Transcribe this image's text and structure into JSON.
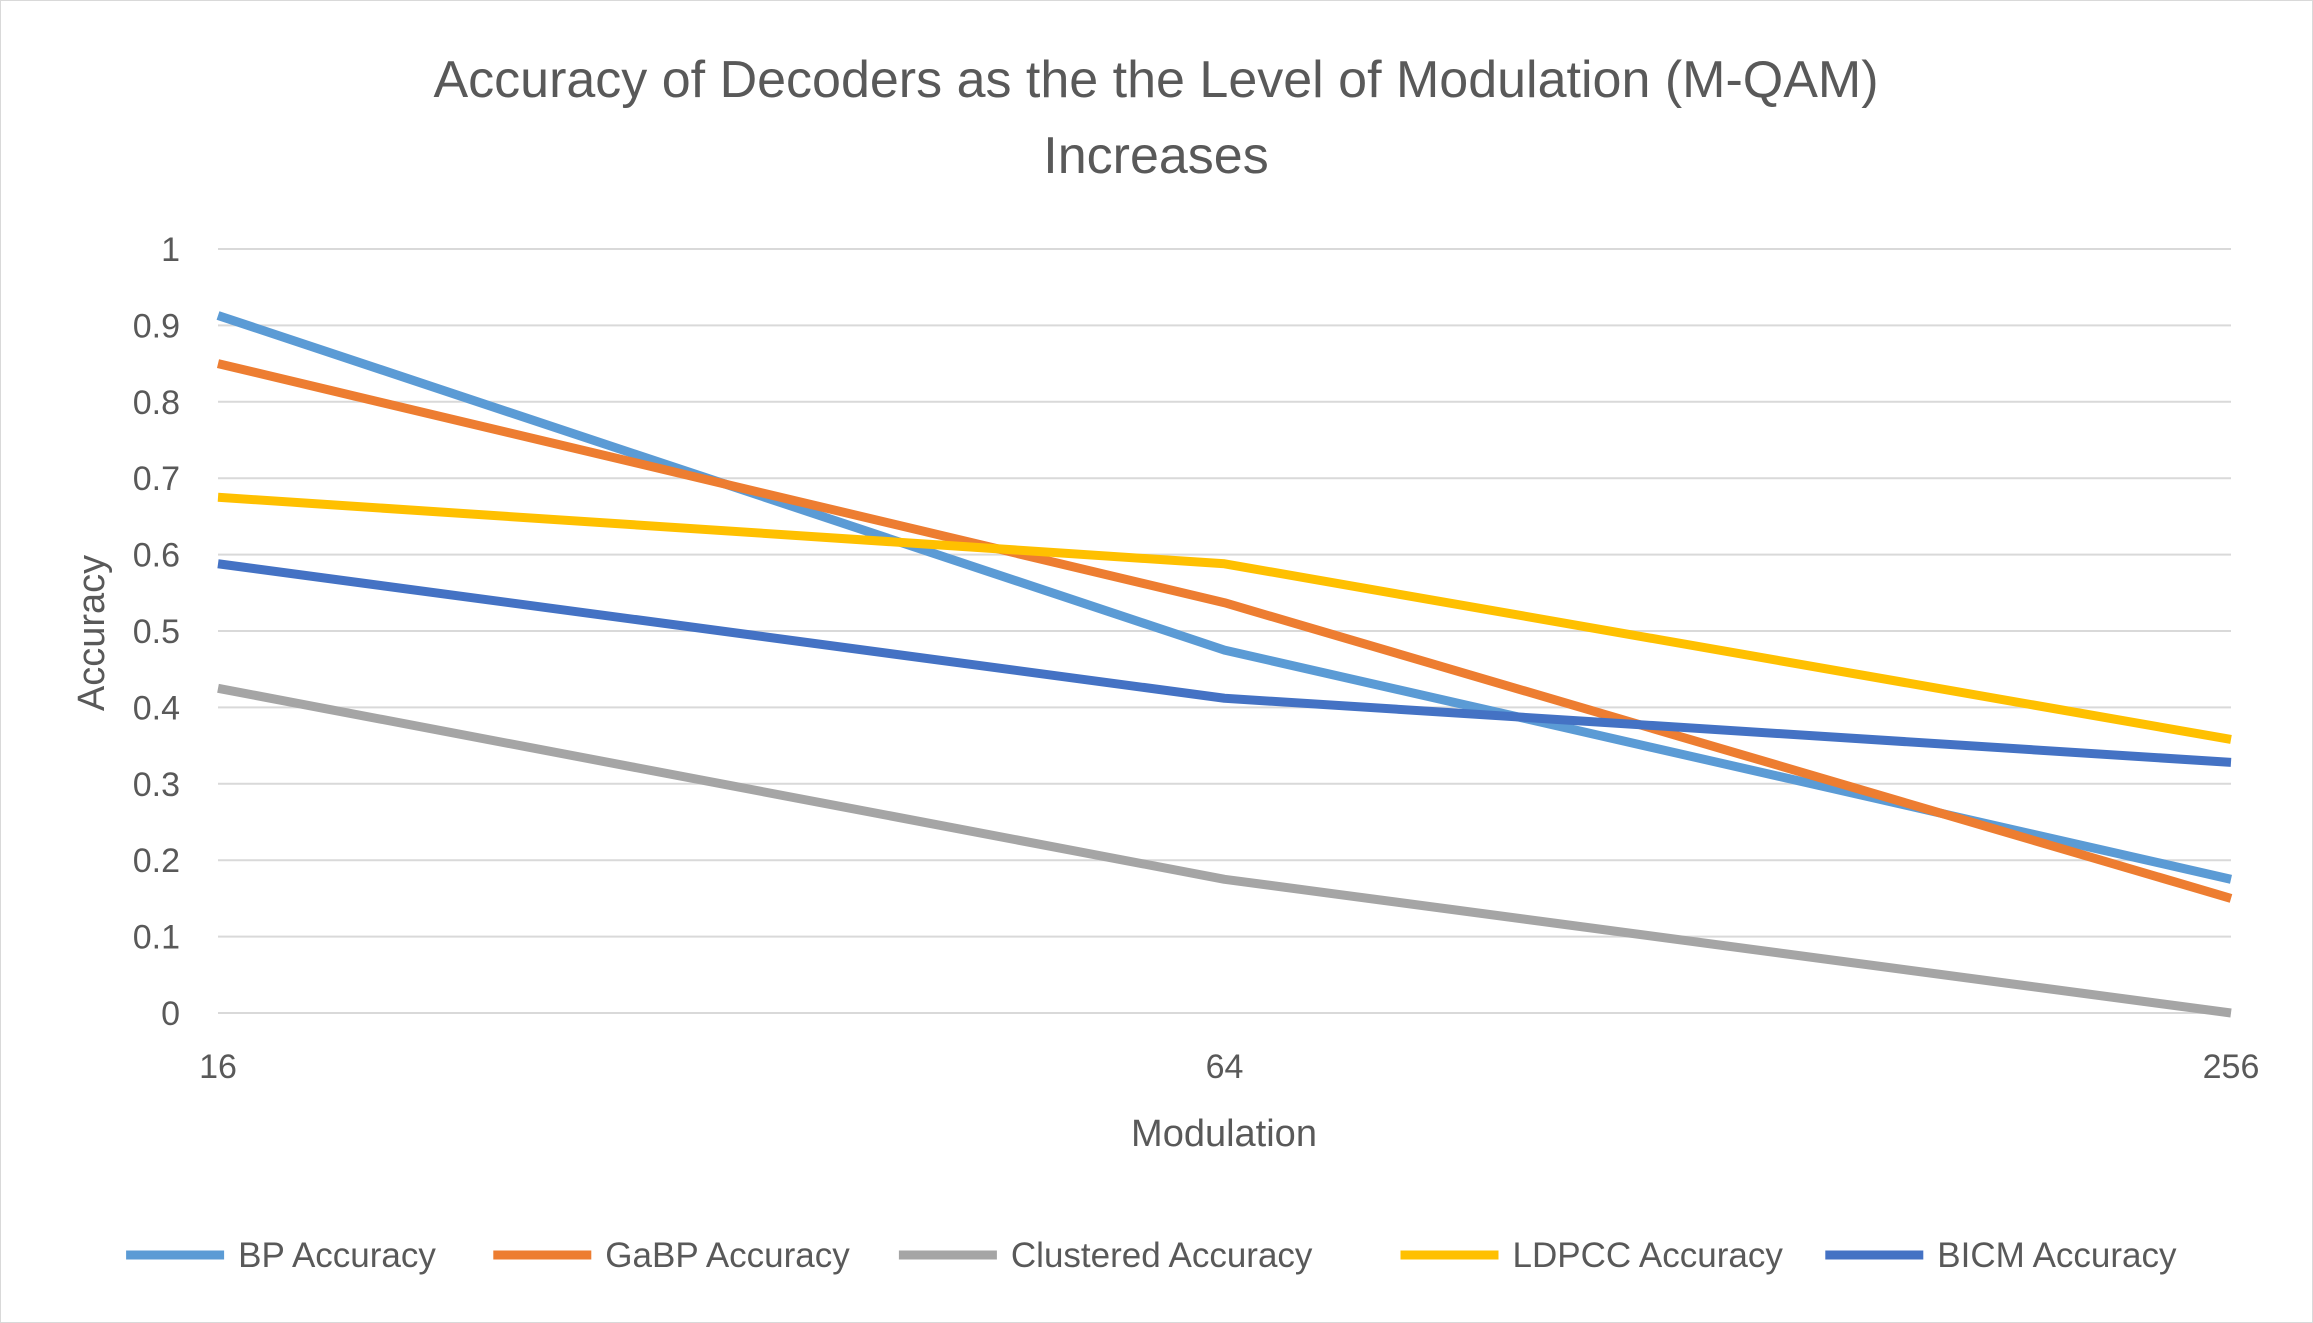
{
  "chart_data": {
    "type": "line",
    "title_lines": [
      "Accuracy of Decoders as the the Level of Modulation (M-QAM)",
      "Increases"
    ],
    "xlabel": "Modulation",
    "ylabel": "Accuracy",
    "categories": [
      "16",
      "64",
      "256"
    ],
    "ylim": [
      0,
      1
    ],
    "yticks": [
      "0",
      "0.1",
      "0.2",
      "0.3",
      "0.4",
      "0.5",
      "0.6",
      "0.7",
      "0.8",
      "0.9",
      "1"
    ],
    "grid": true,
    "legend_position": "bottom",
    "series": [
      {
        "name": "BP Accuracy",
        "color": "#5b9bd5",
        "values": [
          0.913,
          0.475,
          0.175
        ]
      },
      {
        "name": "GaBP Accuracy",
        "color": "#ed7d31",
        "values": [
          0.85,
          0.537,
          0.15
        ]
      },
      {
        "name": "Clustered Accuracy",
        "color": "#a5a5a5",
        "values": [
          0.425,
          0.175,
          0.0
        ]
      },
      {
        "name": "LDPCC Accuracy",
        "color": "#ffc000",
        "values": [
          0.675,
          0.588,
          0.358
        ]
      },
      {
        "name": "BICM Accuracy",
        "color": "#4472c4",
        "values": [
          0.588,
          0.412,
          0.328
        ]
      }
    ]
  }
}
